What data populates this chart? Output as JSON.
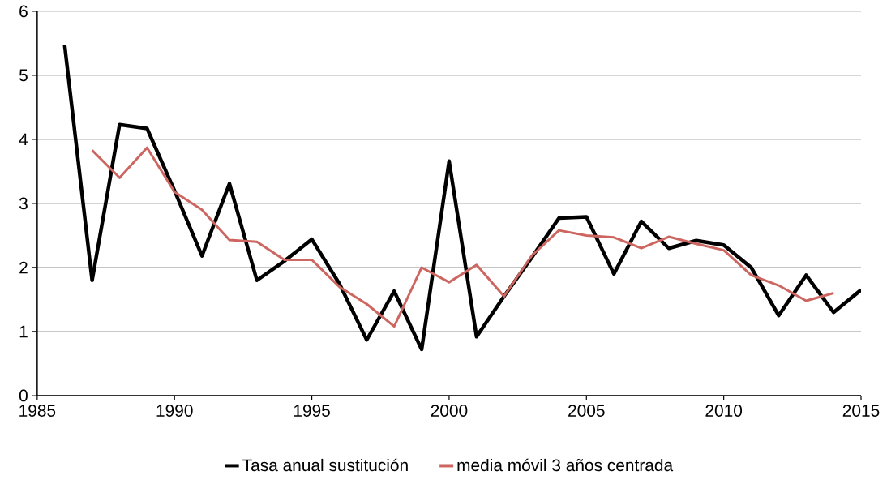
{
  "chart_data": {
    "type": "line",
    "x": [
      1986,
      1987,
      1988,
      1989,
      1990,
      1991,
      1992,
      1993,
      1994,
      1995,
      1996,
      1997,
      1998,
      1999,
      2000,
      2001,
      2002,
      2003,
      2004,
      2005,
      2006,
      2007,
      2008,
      2009,
      2010,
      2011,
      2012,
      2013,
      2014,
      2015
    ],
    "series": [
      {
        "name": "Tasa anual sustitución",
        "color": "#000000",
        "values": [
          5.47,
          1.8,
          4.23,
          4.17,
          3.2,
          2.18,
          3.31,
          1.8,
          2.1,
          2.44,
          1.75,
          0.87,
          1.63,
          0.72,
          3.66,
          0.92,
          1.55,
          2.15,
          2.77,
          2.79,
          1.9,
          2.72,
          2.3,
          2.42,
          2.35,
          2.0,
          1.25,
          1.88,
          1.3,
          1.65
        ]
      },
      {
        "name": "media móvil 3 años centrada",
        "color": "#cd6660",
        "values": [
          null,
          3.83,
          3.4,
          3.87,
          3.18,
          2.9,
          2.43,
          2.4,
          2.12,
          2.12,
          1.7,
          1.43,
          1.08,
          2.0,
          1.77,
          2.04,
          1.55,
          2.18,
          2.58,
          2.5,
          2.47,
          2.3,
          2.48,
          2.37,
          2.27,
          1.88,
          1.72,
          1.48,
          1.6,
          null
        ]
      }
    ],
    "xlim": [
      1985,
      2015
    ],
    "xticks": [
      1985,
      1990,
      1995,
      2000,
      2005,
      2010,
      2015
    ],
    "ylim": [
      0,
      6
    ],
    "yticks": [
      0,
      1,
      2,
      3,
      4,
      5,
      6
    ],
    "grid": "y",
    "legend": "bottom",
    "marker": "none",
    "line_style": "solid"
  }
}
